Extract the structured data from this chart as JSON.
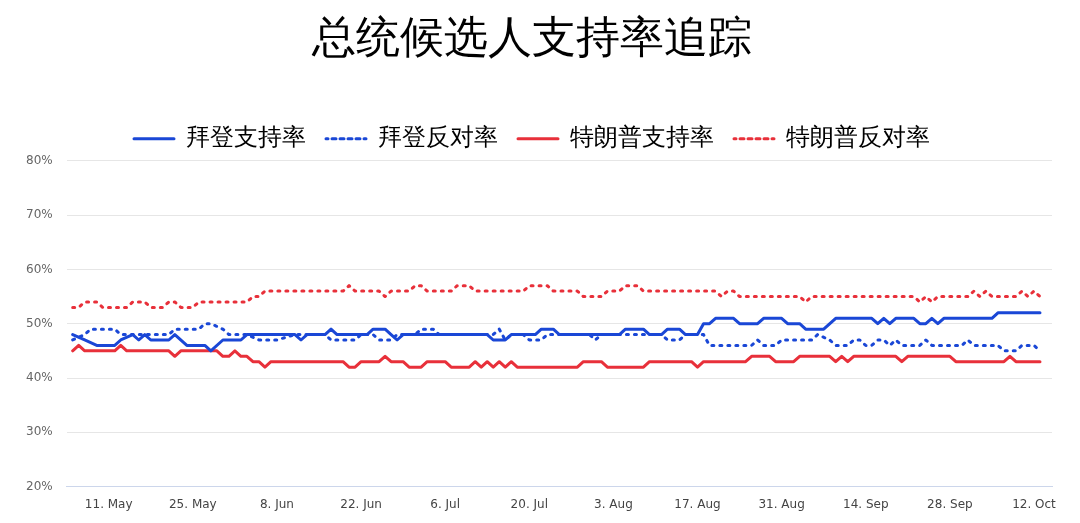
{
  "chart_data": {
    "type": "line",
    "title": "总统候选人支持率追踪",
    "xlim": [
      "--05-04",
      "--10-15"
    ],
    "xticks": [
      {
        "value": "--05-11",
        "label": "11. May"
      },
      {
        "value": "--05-25",
        "label": "25. May"
      },
      {
        "value": "--06-08",
        "label": "8. Jun"
      },
      {
        "value": "--06-22",
        "label": "22. Jun"
      },
      {
        "value": "--07-06",
        "label": "6. Jul"
      },
      {
        "value": "--07-20",
        "label": "20. Jul"
      },
      {
        "value": "--08-03",
        "label": "3. Aug"
      },
      {
        "value": "--08-17",
        "label": "17. Aug"
      },
      {
        "value": "--08-31",
        "label": "31. Aug"
      },
      {
        "value": "--09-14",
        "label": "14. Sep"
      },
      {
        "value": "--09-28",
        "label": "28. Sep"
      },
      {
        "value": "--10-12",
        "label": "12. Oct"
      }
    ],
    "ylim": [
      20,
      80
    ],
    "yticks": [
      {
        "value": 20,
        "label": "20%"
      },
      {
        "value": 30,
        "label": "30%"
      },
      {
        "value": 40,
        "label": "40%"
      },
      {
        "value": 50,
        "label": "50%"
      },
      {
        "value": 60,
        "label": "60%"
      },
      {
        "value": 70,
        "label": "70%"
      },
      {
        "value": 80,
        "label": "80%"
      }
    ],
    "grid": "y",
    "legend": "top",
    "marker": "none",
    "series": [
      {
        "name": "拜登支持率",
        "color": "#1a47d6",
        "line_style": "solid",
        "x": [
          "--05-05",
          "--05-07",
          "--05-09",
          "--05-12",
          "--05-13",
          "--05-15",
          "--05-16",
          "--05-17",
          "--05-18",
          "--05-21",
          "--05-22",
          "--05-24",
          "--05-27",
          "--05-28",
          "--05-30",
          "--06-02",
          "--06-03",
          "--06-11",
          "--06-12",
          "--06-13",
          "--06-16",
          "--06-17",
          "--06-18",
          "--06-23",
          "--06-24",
          "--06-26",
          "--06-27",
          "--06-28",
          "--06-29",
          "--07-13",
          "--07-14",
          "--07-16",
          "--07-17",
          "--07-21",
          "--07-22",
          "--07-24",
          "--07-25",
          "--08-04",
          "--08-05",
          "--08-08",
          "--08-09",
          "--08-11",
          "--08-12",
          "--08-14",
          "--08-15",
          "--08-17",
          "--08-18",
          "--08-19",
          "--08-20",
          "--08-23",
          "--08-24",
          "--08-27",
          "--08-28",
          "--08-31",
          "--09-01",
          "--09-03",
          "--09-04",
          "--09-07",
          "--09-09",
          "--09-15",
          "--09-16",
          "--09-17",
          "--09-18",
          "--09-19",
          "--09-22",
          "--09-23",
          "--09-24",
          "--09-25",
          "--09-26",
          "--09-27",
          "--10-05",
          "--10-06",
          "--10-13"
        ],
        "values": [
          48,
          47,
          46,
          46,
          47,
          48,
          47,
          48,
          47,
          47,
          48,
          46,
          46,
          45,
          47,
          47,
          48,
          48,
          47,
          48,
          48,
          49,
          48,
          48,
          49,
          49,
          48,
          47,
          48,
          48,
          47,
          47,
          48,
          48,
          49,
          49,
          48,
          48,
          49,
          49,
          48,
          48,
          49,
          49,
          48,
          48,
          50,
          50,
          51,
          51,
          50,
          50,
          51,
          51,
          50,
          50,
          49,
          49,
          51,
          51,
          50,
          51,
          50,
          51,
          51,
          50,
          50,
          51,
          50,
          51,
          51,
          52,
          52
        ]
      },
      {
        "name": "拜登反对率",
        "color": "#1a47d6",
        "line_style": "dotted",
        "x": [
          "--05-05",
          "--05-07",
          "--05-08",
          "--05-12",
          "--05-13",
          "--05-21",
          "--05-22",
          "--05-26",
          "--05-27",
          "--05-28",
          "--05-30",
          "--05-31",
          "--06-03",
          "--06-05",
          "--06-08",
          "--06-11",
          "--06-16",
          "--06-17",
          "--06-21",
          "--06-22",
          "--06-24",
          "--06-25",
          "--06-27",
          "--06-28",
          "--07-01",
          "--07-02",
          "--07-04",
          "--07-05",
          "--07-14",
          "--07-15",
          "--07-16",
          "--07-17",
          "--07-19",
          "--07-20",
          "--07-22",
          "--07-23",
          "--07-30",
          "--07-31",
          "--08-01",
          "--08-11",
          "--08-12",
          "--08-14",
          "--08-15",
          "--08-18",
          "--08-19",
          "--08-26",
          "--08-27",
          "--08-28",
          "--08-30",
          "--08-31",
          "--09-05",
          "--09-06",
          "--09-08",
          "--09-09",
          "--09-11",
          "--09-12",
          "--09-13",
          "--09-14",
          "--09-15",
          "--09-16",
          "--09-17",
          "--09-18",
          "--09-19",
          "--09-20",
          "--09-23",
          "--09-24",
          "--09-25",
          "--09-30",
          "--10-01",
          "--10-02",
          "--10-06",
          "--10-07",
          "--10-09",
          "--10-10",
          "--10-12",
          "--10-13"
        ],
        "values": [
          47,
          48,
          49,
          49,
          48,
          48,
          49,
          49,
          50,
          50,
          49,
          48,
          48,
          47,
          47,
          48,
          48,
          47,
          47,
          48,
          48,
          47,
          47,
          48,
          48,
          49,
          49,
          48,
          48,
          49,
          47,
          48,
          48,
          47,
          47,
          48,
          48,
          47,
          48,
          48,
          47,
          47,
          48,
          48,
          46,
          46,
          47,
          46,
          46,
          47,
          47,
          48,
          47,
          46,
          46,
          47,
          47,
          46,
          46,
          47,
          47,
          46,
          47,
          46,
          46,
          47,
          46,
          46,
          47,
          46,
          46,
          45,
          45,
          46,
          46,
          45
        ]
      },
      {
        "name": "特朗普支持率",
        "color": "#e8303a",
        "line_style": "solid",
        "x": [
          "--05-05",
          "--05-06",
          "--05-07",
          "--05-12",
          "--05-13",
          "--05-14",
          "--05-21",
          "--05-22",
          "--05-23",
          "--05-29",
          "--05-30",
          "--05-31",
          "--06-01",
          "--06-02",
          "--06-03",
          "--06-04",
          "--06-05",
          "--06-06",
          "--06-07",
          "--06-19",
          "--06-20",
          "--06-21",
          "--06-22",
          "--06-25",
          "--06-26",
          "--06-27",
          "--06-29",
          "--06-30",
          "--07-02",
          "--07-03",
          "--07-06",
          "--07-07",
          "--07-10",
          "--07-11",
          "--07-12",
          "--07-13",
          "--07-14",
          "--07-15",
          "--07-16",
          "--07-17",
          "--07-18",
          "--07-28",
          "--07-29",
          "--08-01",
          "--08-02",
          "--08-08",
          "--08-09",
          "--08-16",
          "--08-17",
          "--08-18",
          "--08-25",
          "--08-26",
          "--08-29",
          "--08-30",
          "--09-02",
          "--09-03",
          "--09-08",
          "--09-09",
          "--09-10",
          "--09-11",
          "--09-12",
          "--09-19",
          "--09-20",
          "--09-21",
          "--09-28",
          "--09-29",
          "--10-07",
          "--10-08",
          "--10-09",
          "--10-13"
        ],
        "values": [
          45,
          46,
          45,
          45,
          46,
          45,
          45,
          44,
          45,
          45,
          44,
          44,
          45,
          44,
          44,
          43,
          43,
          42,
          43,
          43,
          42,
          42,
          43,
          43,
          44,
          43,
          43,
          42,
          42,
          43,
          43,
          42,
          42,
          43,
          42,
          43,
          42,
          43,
          42,
          43,
          42,
          42,
          43,
          43,
          42,
          42,
          43,
          43,
          42,
          43,
          43,
          44,
          44,
          43,
          43,
          44,
          44,
          43,
          44,
          43,
          44,
          44,
          43,
          44,
          44,
          43,
          43,
          44,
          43,
          43
        ]
      },
      {
        "name": "特朗普反对率",
        "color": "#e8303a",
        "line_style": "dotted",
        "x": [
          "--05-05",
          "--05-06",
          "--05-07",
          "--05-09",
          "--05-10",
          "--05-14",
          "--05-15",
          "--05-17",
          "--05-18",
          "--05-20",
          "--05-21",
          "--05-22",
          "--05-23",
          "--05-25",
          "--05-26",
          "--06-03",
          "--06-04",
          "--06-05",
          "--06-06",
          "--06-19",
          "--06-20",
          "--06-21",
          "--06-25",
          "--06-26",
          "--06-27",
          "--06-30",
          "--07-01",
          "--07-02",
          "--07-03",
          "--07-07",
          "--07-08",
          "--07-10",
          "--07-11",
          "--07-19",
          "--07-20",
          "--07-23",
          "--07-24",
          "--07-28",
          "--07-29",
          "--08-01",
          "--08-02",
          "--08-04",
          "--08-05",
          "--08-07",
          "--08-08",
          "--08-20",
          "--08-21",
          "--08-22",
          "--08-23",
          "--08-24",
          "--09-03",
          "--09-04",
          "--09-05",
          "--09-22",
          "--09-23",
          "--09-24",
          "--09-25",
          "--09-26",
          "--10-01",
          "--10-02",
          "--10-03",
          "--10-04",
          "--10-05",
          "--10-09",
          "--10-10",
          "--10-11",
          "--10-12",
          "--10-13"
        ],
        "values": [
          53,
          53,
          54,
          54,
          53,
          53,
          54,
          54,
          53,
          53,
          54,
          54,
          53,
          53,
          54,
          54,
          55,
          55,
          56,
          56,
          57,
          56,
          56,
          55,
          56,
          56,
          57,
          57,
          56,
          56,
          57,
          57,
          56,
          56,
          57,
          57,
          56,
          56,
          55,
          55,
          56,
          56,
          57,
          57,
          56,
          56,
          55,
          56,
          56,
          55,
          55,
          54,
          55,
          55,
          54,
          55,
          54,
          55,
          55,
          56,
          55,
          56,
          55,
          55,
          56,
          55,
          56,
          55
        ]
      }
    ]
  }
}
